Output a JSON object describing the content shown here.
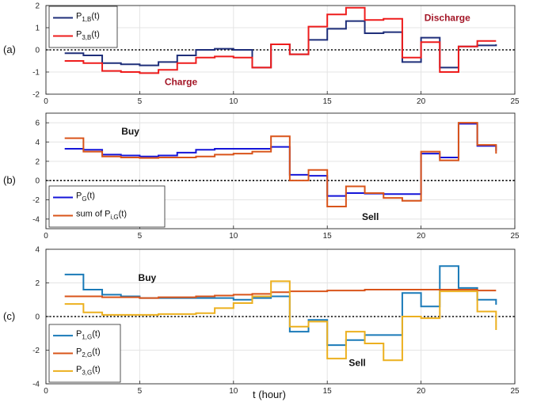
{
  "xlabel": "t (hour)",
  "chart_data": [
    {
      "type": "line",
      "panel_label": "(a)",
      "xlim": [
        0,
        25
      ],
      "ylim": [
        -2,
        2
      ],
      "xticks": [
        0,
        5,
        10,
        15,
        20,
        25
      ],
      "yticks": [
        -2,
        -1,
        0,
        1,
        2
      ],
      "grid": true,
      "legend_position": "top-left",
      "annotations": [
        {
          "text": "Charge",
          "x": 7.2,
          "y": -1.45,
          "color": "#a31526"
        },
        {
          "text": "Discharge",
          "x": 21.4,
          "y": 1.45,
          "color": "#a31526"
        }
      ],
      "series": [
        {
          "name": "P_{1,B}(t)",
          "label_main": "P",
          "label_sub": "1,B",
          "label_tail": "(t)",
          "color": "#1f2f7a",
          "x": [
            1,
            2,
            3,
            4,
            5,
            6,
            7,
            8,
            9,
            10,
            11,
            12,
            13,
            14,
            15,
            16,
            17,
            18,
            19,
            20,
            21,
            22,
            23,
            24
          ],
          "y": [
            -0.15,
            -0.25,
            -0.6,
            -0.65,
            -0.7,
            -0.55,
            -0.25,
            0.0,
            0.05,
            0.0,
            -0.8,
            0.25,
            -0.2,
            0.45,
            0.95,
            1.3,
            0.75,
            0.8,
            -0.55,
            0.55,
            -0.8,
            0.15,
            0.2,
            0.25
          ]
        },
        {
          "name": "P_{3,B}(t)",
          "label_main": "P",
          "label_sub": "3,B",
          "label_tail": "(t)",
          "color": "#ee1c1c",
          "x": [
            1,
            2,
            3,
            4,
            5,
            6,
            7,
            8,
            9,
            10,
            11,
            12,
            13,
            14,
            15,
            16,
            17,
            18,
            19,
            20,
            21,
            22,
            23,
            24
          ],
          "y": [
            -0.5,
            -0.6,
            -0.95,
            -1.0,
            -1.05,
            -0.9,
            -0.6,
            -0.35,
            -0.3,
            -0.35,
            -0.8,
            0.25,
            -0.2,
            1.05,
            1.6,
            1.9,
            1.35,
            1.4,
            -0.35,
            0.35,
            -1.0,
            0.15,
            0.4,
            0.4
          ]
        }
      ]
    },
    {
      "type": "line",
      "panel_label": "(b)",
      "xlim": [
        0,
        25
      ],
      "ylim": [
        -5,
        7
      ],
      "xticks": [
        0,
        5,
        10,
        15,
        20,
        25
      ],
      "yticks": [
        -4,
        -2,
        0,
        2,
        4,
        6
      ],
      "grid": true,
      "legend_position": "bottom-left",
      "annotations": [
        {
          "text": "Buy",
          "x": 4.5,
          "y": 5.1,
          "color": "#111111"
        },
        {
          "text": "Sell",
          "x": 17.3,
          "y": -3.75,
          "color": "#111111"
        }
      ],
      "series": [
        {
          "name": "P_G(t)",
          "label_main": "P",
          "label_sub": "G",
          "label_tail": "(t)",
          "color": "#1515d8",
          "x": [
            1,
            2,
            3,
            4,
            5,
            6,
            7,
            8,
            9,
            10,
            11,
            12,
            13,
            14,
            15,
            16,
            17,
            18,
            19,
            20,
            21,
            22,
            23,
            24
          ],
          "y": [
            3.3,
            3.2,
            2.7,
            2.6,
            2.5,
            2.6,
            2.9,
            3.2,
            3.3,
            3.3,
            3.3,
            3.5,
            0.6,
            0.5,
            -1.6,
            -1.3,
            -1.35,
            -1.4,
            -1.4,
            2.8,
            2.4,
            5.9,
            3.6,
            3.1
          ]
        },
        {
          "name": "sum of P_{i,G}(t)",
          "label_main": "sum of P",
          "label_sub": "i,G",
          "label_tail": "(t)",
          "color": "#d9541a",
          "x": [
            1,
            2,
            3,
            4,
            5,
            6,
            7,
            8,
            9,
            10,
            11,
            12,
            13,
            14,
            15,
            16,
            17,
            18,
            19,
            20,
            21,
            22,
            23,
            24
          ],
          "y": [
            4.4,
            3.0,
            2.5,
            2.4,
            2.35,
            2.4,
            2.4,
            2.5,
            2.7,
            2.8,
            3.0,
            4.6,
            0.0,
            1.1,
            -2.7,
            -0.6,
            -1.3,
            -1.8,
            -2.1,
            3.0,
            2.1,
            6.0,
            3.7,
            2.8
          ]
        }
      ]
    },
    {
      "type": "line",
      "panel_label": "(c)",
      "xlim": [
        0,
        25
      ],
      "ylim": [
        -4,
        4
      ],
      "xticks": [
        0,
        5,
        10,
        15,
        20,
        25
      ],
      "yticks": [
        -4,
        -2,
        0,
        2,
        4
      ],
      "grid": true,
      "legend_position": "bottom-left",
      "annotations": [
        {
          "text": "Buy",
          "x": 5.4,
          "y": 2.3,
          "color": "#111111"
        },
        {
          "text": "Sell",
          "x": 16.6,
          "y": -2.75,
          "color": "#111111"
        }
      ],
      "series": [
        {
          "name": "P_{1,G}(t)",
          "label_main": "P",
          "label_sub": "1,G",
          "label_tail": "(t)",
          "color": "#1a7ab8",
          "x": [
            1,
            2,
            3,
            4,
            5,
            6,
            7,
            8,
            9,
            10,
            11,
            12,
            13,
            14,
            15,
            16,
            17,
            18,
            19,
            20,
            21,
            22,
            23,
            24
          ],
          "y": [
            2.5,
            1.6,
            1.3,
            1.2,
            1.1,
            1.1,
            1.1,
            1.1,
            1.1,
            1.0,
            1.1,
            1.2,
            -0.9,
            -0.2,
            -1.7,
            -1.4,
            -1.1,
            -1.1,
            1.4,
            0.6,
            3.0,
            1.7,
            1.0,
            0.7
          ]
        },
        {
          "name": "P_{2,G}(t)",
          "label_main": "P",
          "label_sub": "2,G",
          "label_tail": "(t)",
          "color": "#d9541a",
          "x": [
            1,
            2,
            3,
            4,
            5,
            6,
            7,
            8,
            9,
            10,
            11,
            12,
            13,
            14,
            15,
            16,
            17,
            18,
            19,
            20,
            21,
            22,
            23,
            24
          ],
          "y": [
            1.2,
            1.2,
            1.15,
            1.15,
            1.1,
            1.15,
            1.15,
            1.2,
            1.25,
            1.3,
            1.35,
            1.45,
            1.5,
            1.5,
            1.55,
            1.55,
            1.6,
            1.6,
            1.6,
            1.6,
            1.6,
            1.6,
            1.55,
            1.55
          ]
        },
        {
          "name": "P_{3,G}(t)",
          "label_main": "P",
          "label_sub": "3,G",
          "label_tail": "(t)",
          "color": "#ecb01f",
          "x": [
            1,
            2,
            3,
            4,
            5,
            6,
            7,
            8,
            9,
            10,
            11,
            12,
            13,
            14,
            15,
            16,
            17,
            18,
            19,
            20,
            21,
            22,
            23,
            24
          ],
          "y": [
            0.75,
            0.25,
            0.1,
            0.1,
            0.1,
            0.15,
            0.15,
            0.2,
            0.5,
            0.8,
            1.2,
            2.1,
            -0.6,
            -0.3,
            -2.5,
            -0.9,
            -1.6,
            -2.6,
            0.0,
            -0.1,
            1.5,
            1.5,
            0.3,
            -0.8
          ]
        }
      ]
    }
  ]
}
